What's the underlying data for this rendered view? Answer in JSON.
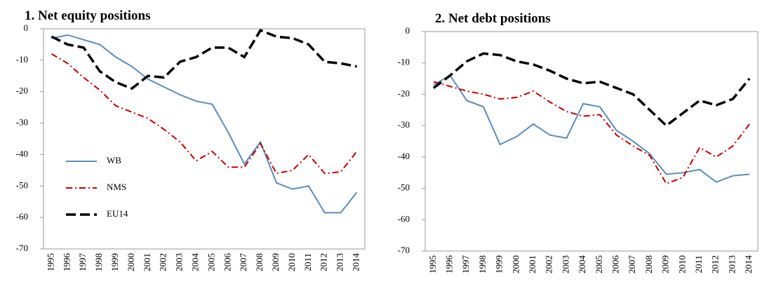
{
  "chart_data": [
    {
      "type": "line",
      "title": "1. Net equity positions",
      "categories": [
        "1995",
        "1996",
        "1997",
        "1998",
        "1999",
        "2000",
        "2001",
        "2002",
        "2003",
        "2004",
        "2005",
        "2006",
        "2007",
        "2008",
        "2009",
        "2010",
        "2011",
        "2012",
        "2013",
        "2014"
      ],
      "ylim": [
        -70,
        0
      ],
      "yticks": [
        -70,
        -60,
        -50,
        -40,
        -30,
        -20,
        -10,
        0
      ],
      "legend": "lower left",
      "series": [
        {
          "name": "WB",
          "color": "#5b8db8",
          "dash": "solid",
          "values": [
            -3,
            -2,
            -3.5,
            -5,
            -9,
            -12,
            -16,
            -18.5,
            -21,
            -23,
            -24,
            -33,
            -43,
            -36,
            -49,
            -51,
            -50,
            -58.5,
            -58.5,
            -52
          ]
        },
        {
          "name": "NMS",
          "color": "#c00000",
          "dash": "dash-dot",
          "values": [
            -8,
            -11,
            -15.5,
            -19.5,
            -24.5,
            -26.5,
            -28.5,
            -32,
            -36,
            -42,
            -39,
            -44,
            -44,
            -36.5,
            -46,
            -45,
            -40,
            -46,
            -45.5,
            -39
          ]
        },
        {
          "name": "EU14",
          "color": "#000000",
          "dash": "long-dash",
          "values": [
            -2.5,
            -5,
            -6,
            -13.5,
            -17,
            -19,
            -15,
            -15.5,
            -10.5,
            -9,
            -6,
            -6,
            -9,
            -0.5,
            -2.5,
            -3,
            -5,
            -10.5,
            -11,
            -12
          ]
        }
      ]
    },
    {
      "type": "line",
      "title": "2. Net debt positions",
      "categories": [
        "1995",
        "1996",
        "1997",
        "1998",
        "1999",
        "2000",
        "2001",
        "2002",
        "2003",
        "2004",
        "2005",
        "2006",
        "2007",
        "2008",
        "2009",
        "2010",
        "2011",
        "2012",
        "2013",
        "2014"
      ],
      "ylim": [
        -70,
        0
      ],
      "yticks": [
        -70,
        -60,
        -50,
        -40,
        -30,
        -20,
        -10,
        0
      ],
      "series": [
        {
          "name": "WB",
          "color": "#5b8db8",
          "dash": "solid",
          "values": [
            -17,
            -14,
            -22,
            -24,
            -36,
            -33.5,
            -29.5,
            -33,
            -34,
            -23,
            -24,
            -31.5,
            -35,
            -39,
            -45.5,
            -45,
            -44,
            -48,
            -46,
            -45.5
          ]
        },
        {
          "name": "NMS",
          "color": "#c00000",
          "dash": "dash-dot",
          "values": [
            -16,
            -17.5,
            -19,
            -20,
            -21.5,
            -21,
            -19,
            -22.5,
            -25.5,
            -27,
            -26.5,
            -33,
            -36.5,
            -39.5,
            -48.5,
            -46.5,
            -37,
            -40,
            -36.5,
            -29.5
          ]
        },
        {
          "name": "EU14",
          "color": "#000000",
          "dash": "long-dash",
          "values": [
            -18,
            -14,
            -9.5,
            -7,
            -7.5,
            -9.5,
            -10.5,
            -12.5,
            -15,
            -16.5,
            -16,
            -18,
            -20,
            -25,
            -30,
            -26,
            -22,
            -23.5,
            -21.5,
            -15
          ]
        }
      ]
    }
  ]
}
